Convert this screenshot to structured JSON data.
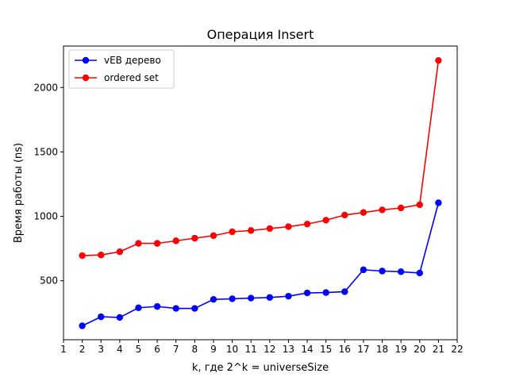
{
  "chart_data": {
    "type": "line",
    "title": "Операция Insert",
    "xlabel": "k, где 2^k = universeSize",
    "ylabel": "Время работы (ns)",
    "xlim": [
      1,
      22
    ],
    "ylim": [
      42,
      2322
    ],
    "xticks": [
      1,
      2,
      3,
      4,
      5,
      6,
      7,
      8,
      9,
      10,
      11,
      12,
      13,
      14,
      15,
      16,
      17,
      18,
      19,
      20,
      21,
      22
    ],
    "yticks": [
      500,
      1000,
      1500,
      2000
    ],
    "grid": false,
    "legend_position": "upper-left",
    "x": [
      2,
      3,
      4,
      5,
      6,
      7,
      8,
      9,
      10,
      11,
      12,
      13,
      14,
      15,
      16,
      17,
      18,
      19,
      20,
      21
    ],
    "series": [
      {
        "name": "vEB дерево",
        "color": "#0000ff",
        "values": [
          150,
          220,
          215,
          290,
          300,
          285,
          285,
          355,
          360,
          365,
          370,
          380,
          405,
          408,
          415,
          585,
          575,
          570,
          560,
          1105
        ]
      },
      {
        "name": "ordered set",
        "color": "#ff0000",
        "values": [
          695,
          700,
          725,
          790,
          790,
          810,
          830,
          850,
          880,
          890,
          905,
          920,
          940,
          970,
          1010,
          1030,
          1050,
          1065,
          1090,
          2210
        ]
      }
    ]
  }
}
